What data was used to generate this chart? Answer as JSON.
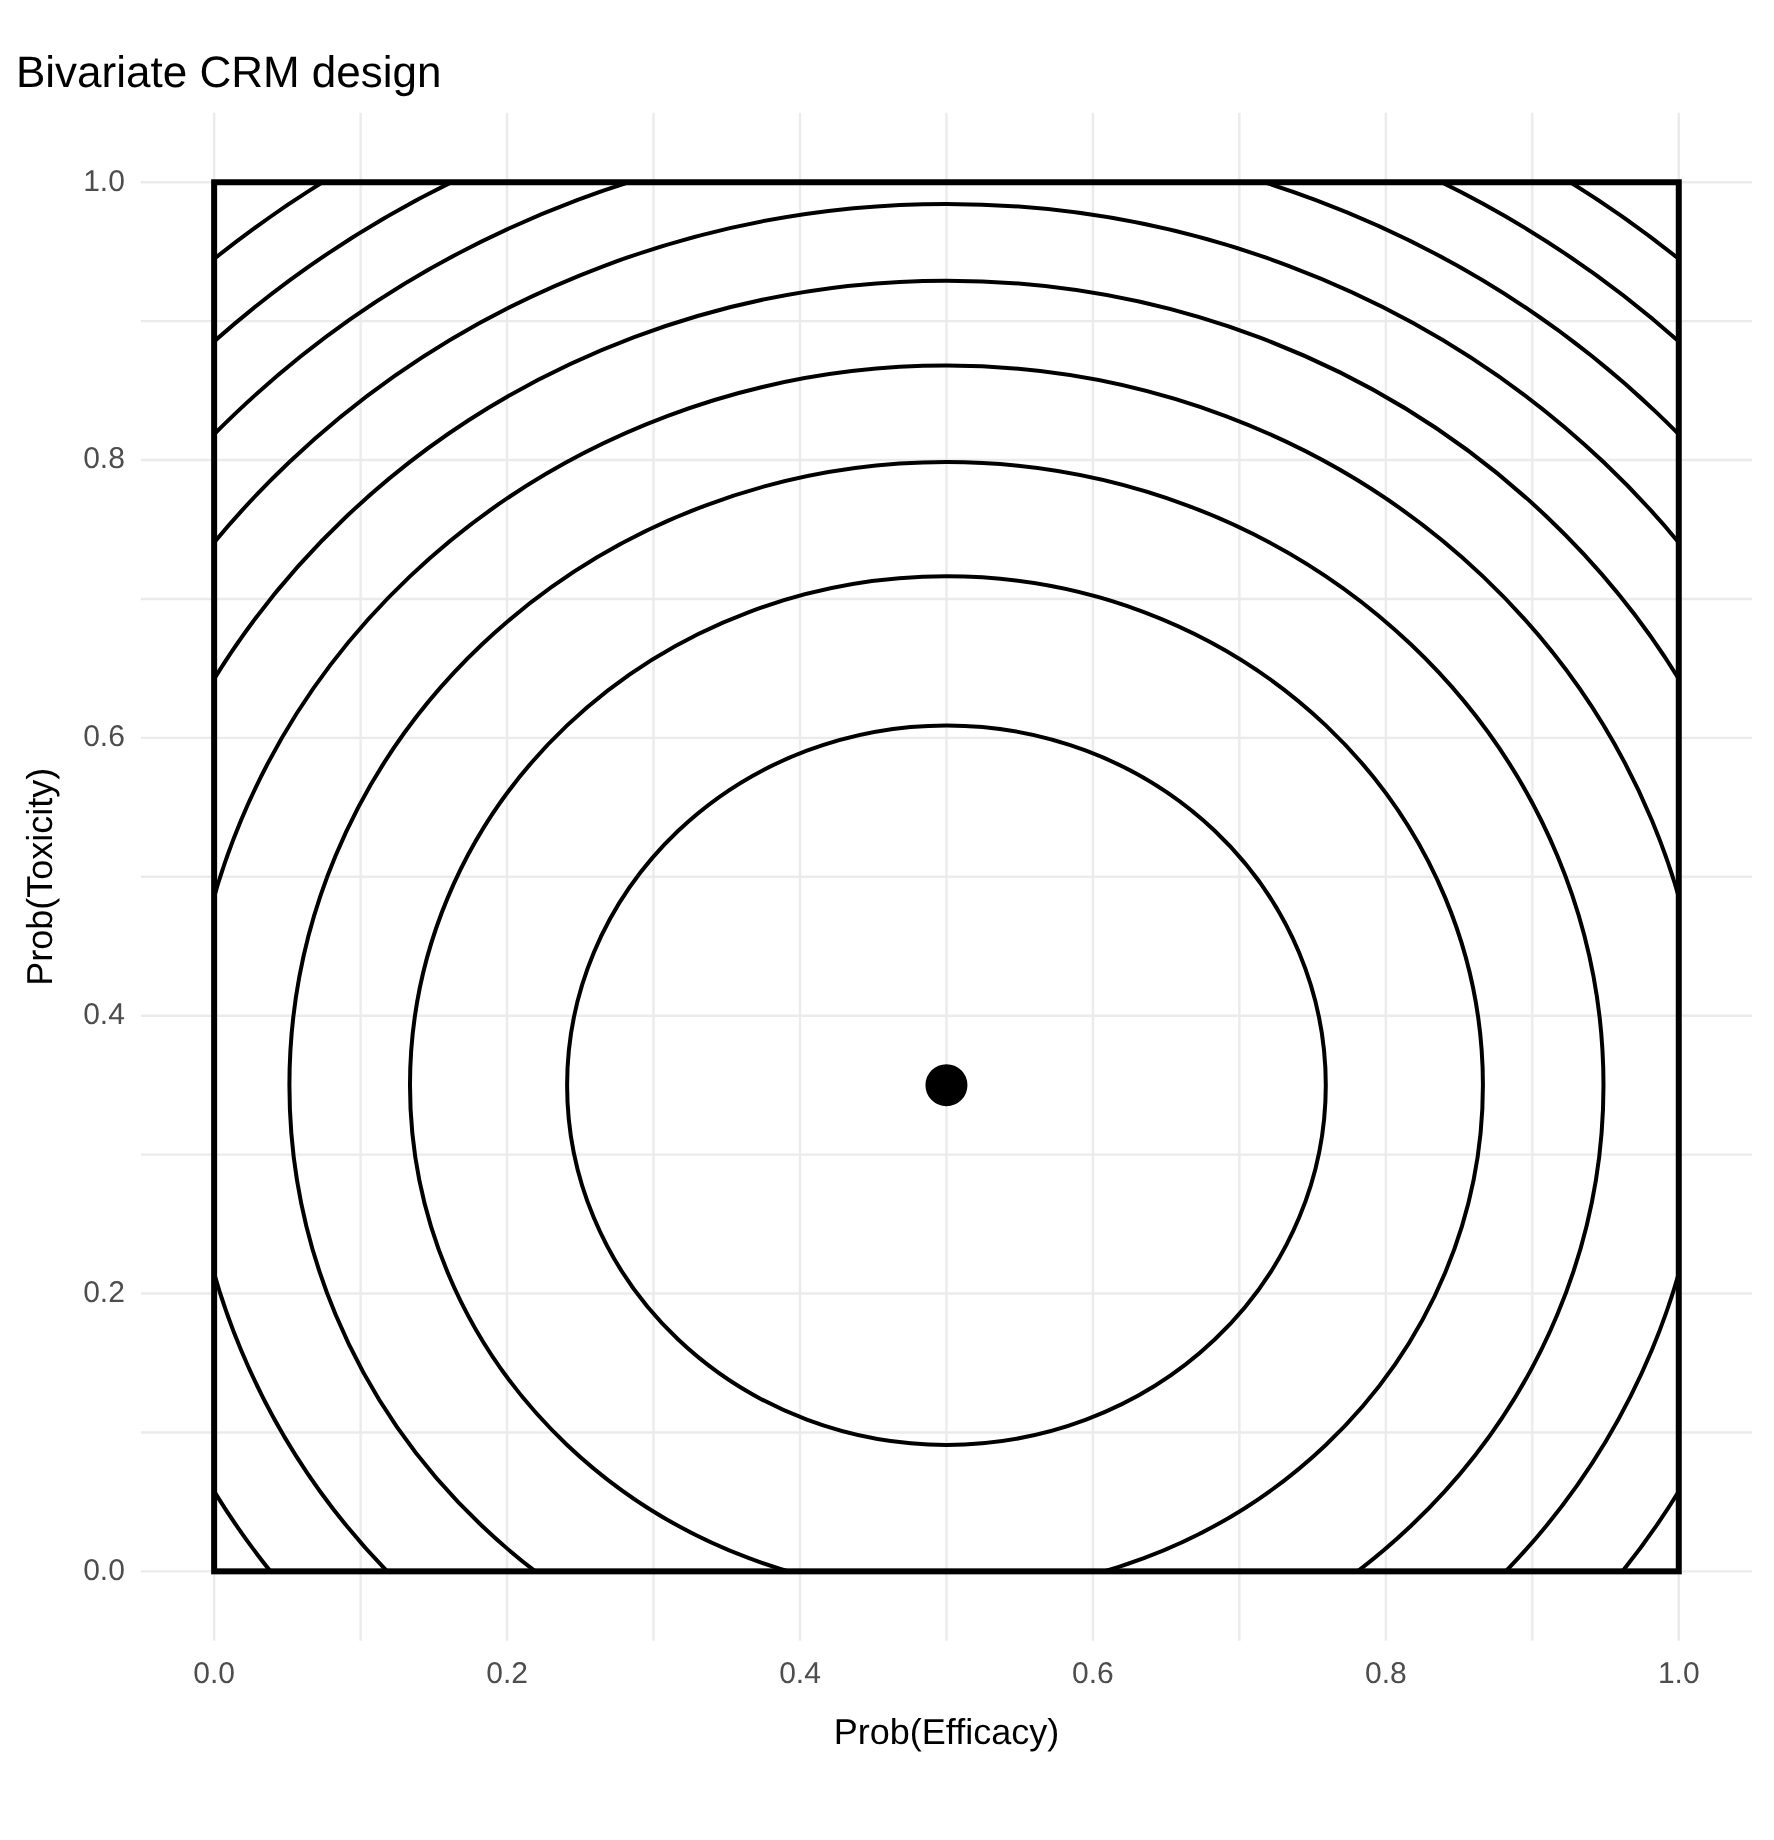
{
  "chart_data": {
    "type": "scatter",
    "title": "Bivariate CRM design",
    "xlabel": "Prob(Efficacy)",
    "ylabel": "Prob(Toxicity)",
    "xlim": [
      -0.05,
      1.05
    ],
    "ylim": [
      -0.05,
      1.05
    ],
    "xticks": [
      {
        "value": 0,
        "label": "0.0"
      },
      {
        "value": 0.1,
        "label": null
      },
      {
        "value": 0.2,
        "label": "0.2"
      },
      {
        "value": 0.3,
        "label": null
      },
      {
        "value": 0.4,
        "label": "0.4"
      },
      {
        "value": 0.5,
        "label": null
      },
      {
        "value": 0.6,
        "label": "0.6"
      },
      {
        "value": 0.7,
        "label": null
      },
      {
        "value": 0.8,
        "label": "0.8"
      },
      {
        "value": 0.9,
        "label": null
      },
      {
        "value": 1,
        "label": "1.0"
      }
    ],
    "yticks": [
      {
        "value": 0,
        "label": "0.0"
      },
      {
        "value": 0.1,
        "label": null
      },
      {
        "value": 0.2,
        "label": "0.2"
      },
      {
        "value": 0.3,
        "label": null
      },
      {
        "value": 0.4,
        "label": "0.4"
      },
      {
        "value": 0.5,
        "label": null
      },
      {
        "value": 0.6,
        "label": "0.6"
      },
      {
        "value": 0.7,
        "label": null
      },
      {
        "value": 0.8,
        "label": "0.8"
      },
      {
        "value": 0.9,
        "label": null
      },
      {
        "value": 1,
        "label": "1.0"
      }
    ],
    "grid": true,
    "legend": false,
    "marker": "circle",
    "x": [
      0.5
    ],
    "values": [
      0.35
    ],
    "color": "#000000"
  }
}
